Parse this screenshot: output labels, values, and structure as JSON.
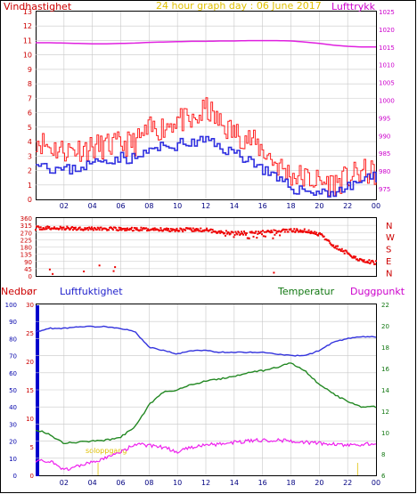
{
  "title": "24 hour graph day : 06 June 2017",
  "wind_speed_label": "Vindhastighet",
  "pressure_label": "Lufttrykk",
  "direction_letters": [
    "N",
    "W",
    "S",
    "E",
    "N"
  ],
  "rain_label": "Nedbør",
  "humidity_label": "Luftfuktighet",
  "temperature_label": "Temperatur",
  "dewpoint_label": "Duggpunkt",
  "sunrise_label": "soloppgang",
  "colors": {
    "gust": "#ff2020",
    "avg_wind": "#3030e0",
    "pressure": "#e020e0",
    "direction": "#ee0000",
    "humidity": "#3333dd",
    "temperature": "#228822",
    "dewpoint": "#ee22ee",
    "rain": "#0000cc",
    "grid": "#c8c8c8"
  },
  "chart_data": [
    {
      "type": "line",
      "title": "24 hour graph day : 06 June 2017",
      "x_ticks": [
        "02",
        "04",
        "06",
        "08",
        "10",
        "12",
        "14",
        "16",
        "18",
        "20",
        "22",
        "00"
      ],
      "y_left": {
        "label": "Vindhastighet",
        "ylim": [
          0,
          13
        ],
        "ticks": [
          0,
          1,
          2,
          3,
          4,
          5,
          6,
          7,
          8,
          9,
          10,
          11,
          12,
          13
        ]
      },
      "y_right": {
        "label": "Lufttrykk",
        "ylim": [
          972,
          1025
        ],
        "ticks": [
          975,
          980,
          985,
          990,
          995,
          1000,
          1005,
          1010,
          1015,
          1020,
          1025
        ]
      },
      "x_hours": [
        0,
        1,
        2,
        3,
        4,
        5,
        6,
        7,
        8,
        9,
        10,
        11,
        12,
        13,
        14,
        15,
        16,
        17,
        18,
        19,
        20,
        21,
        22,
        23,
        24
      ],
      "series": [
        {
          "name": "Vindkast",
          "axis": "left",
          "values": [
            4.2,
            3.6,
            3.4,
            3.5,
            3.6,
            3.7,
            3.8,
            3.9,
            4.8,
            5.0,
            5.6,
            5.2,
            6.3,
            5.2,
            4.6,
            4.2,
            3.4,
            2.4,
            1.7,
            1.5,
            1.2,
            1.1,
            1.5,
            1.9,
            1.8
          ]
        },
        {
          "name": "Middelvind",
          "axis": "left",
          "values": [
            2.8,
            2.2,
            2.0,
            2.2,
            2.5,
            2.8,
            2.9,
            2.8,
            3.4,
            3.6,
            3.8,
            3.9,
            4.1,
            3.6,
            3.2,
            2.8,
            2.1,
            1.3,
            0.8,
            0.6,
            0.5,
            0.5,
            0.8,
            1.4,
            1.5
          ]
        },
        {
          "name": "Lufttrykk",
          "axis": "right",
          "values": [
            1016.2,
            1016.2,
            1016.1,
            1016.0,
            1015.9,
            1015.9,
            1016.0,
            1016.1,
            1016.3,
            1016.4,
            1016.5,
            1016.6,
            1016.6,
            1016.7,
            1016.7,
            1016.8,
            1016.8,
            1016.8,
            1016.7,
            1016.4,
            1016.0,
            1015.5,
            1015.2,
            1015.0,
            1015.0
          ]
        }
      ]
    },
    {
      "type": "scatter",
      "x_ticks": [
        "02",
        "04",
        "06",
        "08",
        "10",
        "12",
        "14",
        "16",
        "18",
        "20",
        "22",
        "00"
      ],
      "y": {
        "ylim": [
          0,
          360
        ],
        "ticks": [
          0,
          45,
          90,
          135,
          180,
          225,
          270,
          315,
          360
        ]
      },
      "right_labels": [
        "N",
        "W",
        "S",
        "E",
        "N"
      ],
      "series": [
        {
          "name": "Vindretning",
          "x": [
            0,
            2,
            4,
            6,
            8,
            10,
            12,
            14,
            16,
            18,
            19,
            20,
            21,
            22,
            23,
            24
          ],
          "values": [
            298,
            296,
            295,
            290,
            290,
            288,
            285,
            265,
            270,
            283,
            280,
            260,
            190,
            140,
            95,
            82
          ]
        }
      ]
    },
    {
      "type": "line",
      "x_ticks": [
        "02",
        "04",
        "06",
        "08",
        "10",
        "12",
        "14",
        "16",
        "18",
        "20",
        "22",
        "00"
      ],
      "y_rain": {
        "label": "Nedbør",
        "ylim": [
          0,
          100
        ],
        "ticks": [
          0,
          10,
          20,
          30,
          40,
          50,
          60,
          70,
          80,
          90,
          100
        ]
      },
      "y_left": {
        "label": "Luftfuktighet",
        "ylim": [
          0,
          30
        ],
        "ticks": [
          0,
          5,
          10,
          15,
          20,
          25,
          30
        ]
      },
      "y_right": {
        "label": "Temperatur",
        "ylim": [
          6,
          22
        ],
        "ticks": [
          6,
          8,
          10,
          12,
          14,
          16,
          18,
          20,
          22
        ]
      },
      "x_hours": [
        0,
        1,
        2,
        3,
        4,
        5,
        6,
        7,
        8,
        9,
        10,
        11,
        12,
        13,
        14,
        15,
        16,
        17,
        18,
        19,
        20,
        21,
        22,
        23,
        24
      ],
      "series": [
        {
          "name": "Luftfuktighet",
          "axis": "left",
          "values": [
            84,
            86,
            86,
            87,
            87,
            87,
            86,
            84,
            75,
            73,
            71,
            73,
            73,
            72,
            72,
            72,
            72,
            71,
            70,
            70,
            73,
            78,
            80,
            81,
            81
          ]
        },
        {
          "name": "Temperatur",
          "axis": "right",
          "values": [
            10.3,
            9.8,
            9.0,
            9.1,
            9.2,
            9.3,
            9.6,
            10.5,
            12.6,
            13.8,
            14.0,
            14.5,
            14.8,
            15.0,
            15.3,
            15.6,
            15.8,
            16.1,
            16.5,
            15.8,
            14.5,
            13.6,
            12.9,
            12.4,
            12.4
          ]
        },
        {
          "name": "Duggpunkt",
          "axis": "right",
          "values": [
            7.4,
            7.3,
            6.5,
            6.9,
            7.2,
            7.6,
            8.2,
            8.9,
            8.8,
            8.6,
            8.2,
            8.6,
            8.9,
            8.9,
            9.1,
            9.2,
            9.3,
            9.3,
            9.2,
            9.1,
            9.0,
            8.9,
            8.8,
            8.9,
            8.9
          ]
        }
      ]
    }
  ]
}
